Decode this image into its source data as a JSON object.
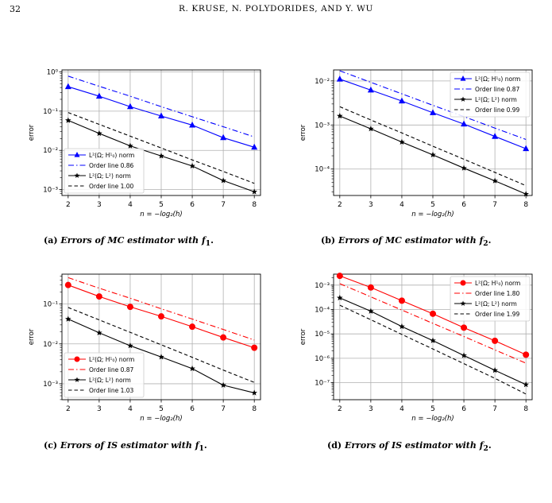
{
  "page": {
    "number": "32",
    "running_head": "R. KRUSE, N. POLYDORIDES, AND Y. WU"
  },
  "captions": [
    {
      "label": "(a)",
      "text_pre": "Errors of MC estimator with ",
      "sym": "f",
      "sub": "1",
      "end": "."
    },
    {
      "label": "(b)",
      "text_pre": "Errors of MC estimator with ",
      "sym": "f",
      "sub": "2",
      "end": "."
    },
    {
      "label": "(c)",
      "text_pre": "Errors of IS estimator with ",
      "sym": "f",
      "sub": "1",
      "end": "."
    },
    {
      "label": "(d)",
      "text_pre": "Errors of IS estimator with ",
      "sym": "f",
      "sub": "2",
      "end": "."
    }
  ],
  "chart_data": [
    {
      "type": "line",
      "panel": "a",
      "xlabel": "n = −log₂(h)",
      "ylabel": "error",
      "x": [
        2,
        3,
        4,
        5,
        6,
        7,
        8
      ],
      "xlim": [
        1.8,
        8.2
      ],
      "ylim_exp": [
        -3.15,
        0.05
      ],
      "yscale": "log",
      "yticks_exp": [
        -3,
        -2,
        -1,
        0
      ],
      "grid": true,
      "legend_position": "lower-left",
      "series": [
        {
          "name": "L²(Ω; H¹₀) norm",
          "style": "marker-line",
          "marker": "triangle",
          "color": "#0000ff",
          "values": [
            0.42,
            0.24,
            0.13,
            0.075,
            0.044,
            0.021,
            0.012
          ]
        },
        {
          "name": "Order line 0.86",
          "style": "dashdot",
          "color": "#0000ff",
          "values": [
            0.78,
            0.43,
            0.24,
            0.13,
            0.072,
            0.04,
            0.022
          ]
        },
        {
          "name": "L²(Ω; L²) norm",
          "style": "marker-line",
          "marker": "star",
          "color": "#000000",
          "values": [
            0.058,
            0.027,
            0.013,
            0.0072,
            0.004,
            0.0017,
            0.00088
          ]
        },
        {
          "name": "Order line 1.00",
          "style": "dashed",
          "color": "#000000",
          "values": [
            0.092,
            0.046,
            0.023,
            0.0115,
            0.0057,
            0.0029,
            0.00144
          ]
        }
      ]
    },
    {
      "type": "line",
      "panel": "b",
      "xlabel": "n = −log₂(h)",
      "ylabel": "error",
      "x": [
        2,
        3,
        4,
        5,
        6,
        7,
        8
      ],
      "xlim": [
        1.8,
        8.2
      ],
      "ylim_exp": [
        -4.6,
        -1.75
      ],
      "yscale": "log",
      "yticks_exp": [
        -4,
        -3,
        -2
      ],
      "grid": true,
      "legend_position": "upper-right",
      "series": [
        {
          "name": "L²(Ω; H¹₀) norm",
          "style": "marker-line",
          "marker": "triangle",
          "color": "#0000ff",
          "values": [
            0.011,
            0.0062,
            0.0035,
            0.0019,
            0.00105,
            0.00055,
            0.00029
          ]
        },
        {
          "name": "Order line 0.87",
          "style": "dashdot",
          "color": "#0000ff",
          "values": [
            0.017,
            0.0093,
            0.0051,
            0.0028,
            0.00155,
            0.00085,
            0.00047
          ]
        },
        {
          "name": "L²(Ω; L²) norm",
          "style": "marker-line",
          "marker": "star",
          "color": "#000000",
          "values": [
            0.0016,
            0.00082,
            0.00041,
            0.00021,
            0.000105,
            5.4e-05,
            2.7e-05
          ]
        },
        {
          "name": "Order line 0.99",
          "style": "dashed",
          "color": "#000000",
          "values": [
            0.0026,
            0.0013,
            0.00066,
            0.00033,
            0.000167,
            8.4e-05,
            4.2e-05
          ]
        }
      ]
    },
    {
      "type": "line",
      "panel": "c",
      "xlabel": "n = −log₂(h)",
      "ylabel": "error",
      "x": [
        2,
        3,
        4,
        5,
        6,
        7,
        8
      ],
      "xlim": [
        1.8,
        8.2
      ],
      "ylim_exp": [
        -3.4,
        -0.25
      ],
      "yscale": "log",
      "yticks_exp": [
        -3,
        -2,
        -1
      ],
      "grid": true,
      "legend_position": "lower-left",
      "series": [
        {
          "name": "L²(Ω; H¹₀) norm",
          "style": "marker-line",
          "marker": "circle",
          "color": "#ff0000",
          "values": [
            0.3,
            0.155,
            0.085,
            0.049,
            0.027,
            0.0145,
            0.008
          ]
        },
        {
          "name": "Order line 0.87",
          "style": "dashdot",
          "color": "#ff0000",
          "values": [
            0.46,
            0.25,
            0.14,
            0.076,
            0.042,
            0.023,
            0.0125
          ]
        },
        {
          "name": "L²(Ω; L²) norm",
          "style": "marker-line",
          "marker": "star",
          "color": "#000000",
          "values": [
            0.042,
            0.019,
            0.009,
            0.0047,
            0.0024,
            0.00092,
            0.00059
          ]
        },
        {
          "name": "Order line 1.03",
          "style": "dashed",
          "color": "#000000",
          "values": [
            0.082,
            0.04,
            0.0195,
            0.0095,
            0.0046,
            0.0022,
            0.00108
          ]
        }
      ]
    },
    {
      "type": "line",
      "panel": "d",
      "xlabel": "n = −log₂(h)",
      "ylabel": "error",
      "x": [
        2,
        3,
        4,
        5,
        6,
        7,
        8
      ],
      "xlim": [
        1.8,
        8.2
      ],
      "ylim_exp": [
        -7.7,
        -2.55
      ],
      "yscale": "log",
      "yticks_exp": [
        -7,
        -6,
        -5,
        -4,
        -3
      ],
      "grid": true,
      "legend_position": "upper-right",
      "series": [
        {
          "name": "L²(Ω; H¹₀) norm",
          "style": "marker-line",
          "marker": "circle",
          "color": "#ff0000",
          "values": [
            0.0024,
            0.0008,
            0.00023,
            6.7e-05,
            1.8e-05,
            5.2e-06,
            1.4e-06
          ]
        },
        {
          "name": "Order line 1.80",
          "style": "dashdot",
          "color": "#ff0000",
          "values": [
            0.00115,
            0.00033,
            9.5e-05,
            2.7e-05,
            7.8e-06,
            2.2e-06,
            6.3e-07
          ]
        },
        {
          "name": "L²(Ω; L²) norm",
          "style": "marker-line",
          "marker": "star",
          "color": "#000000",
          "values": [
            0.0003,
            8.5e-05,
            2e-05,
            5.3e-06,
            1.3e-06,
            3.2e-07,
            8.3e-08
          ]
        },
        {
          "name": "Order line 1.99",
          "style": "dashed",
          "color": "#000000",
          "values": [
            0.00015,
            3.8e-05,
            9.5e-06,
            2.4e-06,
            6e-07,
            1.5e-07,
            3.4e-08
          ]
        }
      ]
    }
  ]
}
